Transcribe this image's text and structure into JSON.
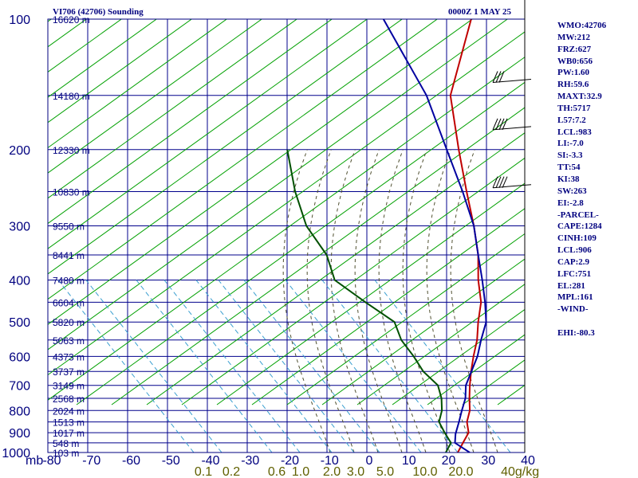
{
  "header": {
    "title": "VI706 (42706) Sounding",
    "date": "0000Z  1 MAY 25"
  },
  "indices": [
    "WMO:42706",
    "MW:212",
    "FRZ:627",
    "WB0:656",
    "PW:1.60",
    "RH:59.6",
    "MAXT:32.9",
    "TH:5717",
    "L57:7.2",
    "LCL:983",
    "LI:-7.0",
    "SI:-3.3",
    "TT:54",
    "KI:38",
    "SW:263",
    "EI:-2.8",
    "-PARCEL-",
    "CAPE:1284",
    "CINH:109",
    "LCL:906",
    "CAP:2.9",
    "LFC:751",
    "EL:281",
    "MPL:161",
    "-WIND-",
    "",
    "EHI:-80.3"
  ],
  "chart_data": {
    "type": "line",
    "title": "VI706 (42706) Sounding",
    "subtitle": "0000Z  1 MAY 25",
    "xlabel": "",
    "ylabel": "mb",
    "y_scale": "log-pressure",
    "ylim": [
      1000,
      100
    ],
    "xlim": [
      -80,
      40
    ],
    "grid": true,
    "pressure_ticks": [
      100,
      200,
      300,
      400,
      500,
      600,
      700,
      800,
      900,
      1000
    ],
    "pressure_label": "mb",
    "temperature_ticks": [
      -80,
      -70,
      -60,
      -50,
      -40,
      -30,
      -20,
      -10,
      0,
      10,
      20,
      30,
      40
    ],
    "mixing_ratio_labels": [
      "0.1",
      "0.2",
      "0.6",
      "1.0",
      "2.0",
      "3.0",
      "5.0",
      "10.0",
      "20.0",
      "40",
      "g/kg"
    ],
    "height_labels": [
      {
        "p": 100,
        "label": "16620 m"
      },
      {
        "p": 150,
        "label": "14180 m"
      },
      {
        "p": 200,
        "label": "12330 m"
      },
      {
        "p": 250,
        "label": "10830 m"
      },
      {
        "p": 300,
        "label": "9550 m"
      },
      {
        "p": 350,
        "label": "8441 m"
      },
      {
        "p": 400,
        "label": "7480 m"
      },
      {
        "p": 450,
        "label": "6604 m"
      },
      {
        "p": 500,
        "label": "5820 m"
      },
      {
        "p": 550,
        "label": "5063 m"
      },
      {
        "p": 600,
        "label": "4373 m"
      },
      {
        "p": 650,
        "label": "3737 m"
      },
      {
        "p": 700,
        "label": "3149 m"
      },
      {
        "p": 750,
        "label": "2568 m"
      },
      {
        "p": 800,
        "label": "2024 m"
      },
      {
        "p": 850,
        "label": "1513 m"
      },
      {
        "p": 900,
        "label": "1017 m"
      },
      {
        "p": 950,
        "label": "548 m"
      },
      {
        "p": 1000,
        "label": "103 m"
      }
    ],
    "series": [
      {
        "name": "",
        "kind": "temperature",
        "color": "#c00000",
        "points": [
          {
            "p": 1000,
            "t": 22
          },
          {
            "p": 950,
            "t": 21
          },
          {
            "p": 900,
            "t": 20
          },
          {
            "p": 850,
            "t": 17
          },
          {
            "p": 800,
            "t": 15
          },
          {
            "p": 750,
            "t": 12
          },
          {
            "p": 700,
            "t": 9
          },
          {
            "p": 650,
            "t": 6
          },
          {
            "p": 600,
            "t": 3
          },
          {
            "p": 550,
            "t": 0
          },
          {
            "p": 500,
            "t": -4
          },
          {
            "p": 450,
            "t": -8
          },
          {
            "p": 400,
            "t": -14
          },
          {
            "p": 350,
            "t": -20
          },
          {
            "p": 300,
            "t": -28
          },
          {
            "p": 250,
            "t": -38
          },
          {
            "p": 200,
            "t": -50
          },
          {
            "p": 150,
            "t": -65
          },
          {
            "p": 100,
            "t": -78
          }
        ]
      },
      {
        "name": "",
        "kind": "dewpoint",
        "color": "#005000",
        "points": [
          {
            "p": 1000,
            "t": 19
          },
          {
            "p": 950,
            "t": 18
          },
          {
            "p": 900,
            "t": 14
          },
          {
            "p": 850,
            "t": 10
          },
          {
            "p": 800,
            "t": 8
          },
          {
            "p": 750,
            "t": 5
          },
          {
            "p": 700,
            "t": 1
          },
          {
            "p": 650,
            "t": -6
          },
          {
            "p": 600,
            "t": -12
          },
          {
            "p": 550,
            "t": -19
          },
          {
            "p": 500,
            "t": -25
          },
          {
            "p": 450,
            "t": -37
          },
          {
            "p": 400,
            "t": -50
          },
          {
            "p": 350,
            "t": -58
          },
          {
            "p": 300,
            "t": -70
          },
          {
            "p": 250,
            "t": -81
          },
          {
            "p": 200,
            "t": -93
          }
        ]
      },
      {
        "name": "",
        "kind": "parcel",
        "color": "#0000a0",
        "points": [
          {
            "p": 1000,
            "t": 25
          },
          {
            "p": 950,
            "t": 19
          },
          {
            "p": 906,
            "t": 17
          },
          {
            "p": 850,
            "t": 15
          },
          {
            "p": 800,
            "t": 13
          },
          {
            "p": 750,
            "t": 11
          },
          {
            "p": 700,
            "t": 8
          },
          {
            "p": 600,
            "t": 4
          },
          {
            "p": 550,
            "t": 1
          },
          {
            "p": 500,
            "t": -2
          },
          {
            "p": 450,
            "t": -7
          },
          {
            "p": 400,
            "t": -13
          },
          {
            "p": 350,
            "t": -20
          },
          {
            "p": 300,
            "t": -28
          },
          {
            "p": 250,
            "t": -39
          },
          {
            "p": 200,
            "t": -53
          },
          {
            "p": 150,
            "t": -71
          },
          {
            "p": 100,
            "t": -100
          }
        ]
      }
    ],
    "wind_barbs": [
      {
        "p": 140,
        "speed_kt": 30
      },
      {
        "p": 180,
        "speed_kt": 35
      },
      {
        "p": 245,
        "speed_kt": 35
      }
    ],
    "colors": {
      "grid": "#00008b",
      "frame": "#00007f",
      "dry_adiabat": "#00a000",
      "moist_adiabat": "#505030",
      "mixing_ratio": "#3a9fd0",
      "mixing_ratio_label": "#606000",
      "temperature": "#c00000",
      "dewpoint": "#005000",
      "parcel": "#0000a0"
    }
  }
}
